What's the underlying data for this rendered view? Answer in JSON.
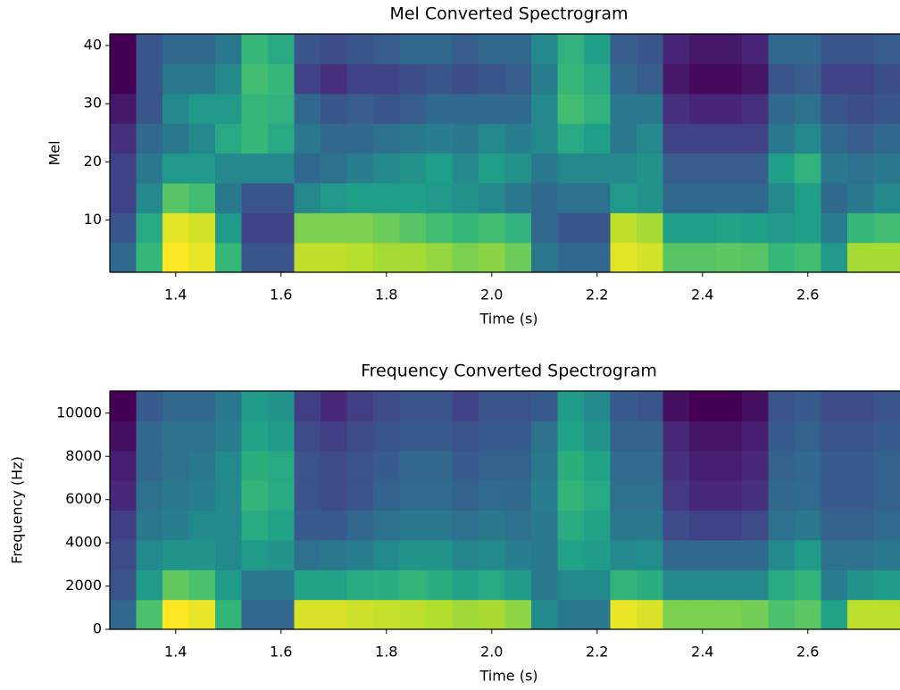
{
  "chart_data": [
    {
      "type": "heatmap",
      "title": "Mel Converted Spectrogram",
      "xlabel": "Time (s)",
      "ylabel": "Mel",
      "colormap": "viridis",
      "x": [
        1.3,
        1.35,
        1.4,
        1.45,
        1.5,
        1.55,
        1.6,
        1.65,
        1.7,
        1.75,
        1.8,
        1.85,
        1.9,
        1.95,
        2.0,
        2.05,
        2.1,
        2.15,
        2.2,
        2.25,
        2.3,
        2.35,
        2.4,
        2.45,
        2.5,
        2.55,
        2.6,
        2.65,
        2.7,
        2.75
      ],
      "values": [
        [
          45,
          70,
          95,
          93,
          70,
          40,
          40,
          88,
          88,
          87,
          85,
          85,
          83,
          80,
          82,
          78,
          50,
          45,
          45,
          92,
          90,
          75,
          75,
          76,
          75,
          70,
          72,
          60,
          85,
          85
        ],
        [
          40,
          65,
          92,
          90,
          60,
          35,
          35,
          80,
          80,
          80,
          78,
          75,
          72,
          70,
          72,
          68,
          45,
          40,
          40,
          88,
          85,
          62,
          62,
          63,
          62,
          60,
          62,
          52,
          70,
          72
        ],
        [
          35,
          55,
          75,
          72,
          50,
          40,
          40,
          55,
          60,
          62,
          62,
          62,
          60,
          58,
          55,
          50,
          45,
          48,
          48,
          60,
          58,
          45,
          45,
          45,
          45,
          55,
          62,
          45,
          50,
          55
        ],
        [
          35,
          50,
          60,
          60,
          55,
          55,
          55,
          45,
          48,
          52,
          55,
          58,
          62,
          55,
          62,
          58,
          50,
          55,
          55,
          55,
          58,
          42,
          42,
          42,
          42,
          62,
          68,
          50,
          48,
          50
        ],
        [
          30,
          45,
          50,
          55,
          65,
          70,
          65,
          50,
          45,
          45,
          48,
          50,
          52,
          50,
          55,
          52,
          55,
          65,
          62,
          50,
          55,
          35,
          35,
          35,
          35,
          50,
          55,
          45,
          42,
          45
        ],
        [
          25,
          40,
          55,
          60,
          60,
          70,
          68,
          45,
          40,
          42,
          40,
          42,
          45,
          45,
          45,
          45,
          55,
          72,
          68,
          50,
          50,
          30,
          28,
          28,
          30,
          45,
          48,
          40,
          38,
          40
        ],
        [
          20,
          40,
          50,
          50,
          55,
          72,
          70,
          35,
          30,
          35,
          35,
          38,
          40,
          38,
          40,
          42,
          52,
          70,
          65,
          45,
          42,
          25,
          22,
          22,
          24,
          40,
          42,
          35,
          35,
          38
        ],
        [
          20,
          40,
          45,
          45,
          50,
          70,
          65,
          40,
          38,
          40,
          42,
          45,
          45,
          42,
          45,
          45,
          55,
          68,
          62,
          42,
          40,
          28,
          25,
          25,
          28,
          45,
          45,
          40,
          40,
          42
        ]
      ],
      "xlim": [
        1.275,
        2.775
      ],
      "ylim": [
        1,
        42
      ],
      "xticks": [
        1.4,
        1.6,
        1.8,
        {
          "value": 2,
          "label": "2.0"
        },
        2.2,
        2.4,
        2.6
      ],
      "yticks": [
        10,
        20,
        30,
        40
      ]
    },
    {
      "type": "heatmap",
      "title": "Frequency Converted Spectrogram",
      "xlabel": "Time (s)",
      "ylabel": "Frequency (Hz)",
      "colormap": "viridis",
      "x": [
        1.3,
        1.35,
        1.4,
        1.45,
        1.5,
        1.55,
        1.6,
        1.65,
        1.7,
        1.75,
        1.8,
        1.85,
        1.9,
        1.95,
        2.0,
        2.05,
        2.1,
        2.15,
        2.2,
        2.25,
        2.3,
        2.35,
        2.4,
        2.45,
        2.5,
        2.55,
        2.6,
        2.65,
        2.7,
        2.75
      ],
      "values": [
        [
          45,
          72,
          92,
          90,
          68,
          45,
          45,
          88,
          88,
          87,
          86,
          85,
          84,
          82,
          83,
          80,
          55,
          50,
          50,
          90,
          88,
          78,
          78,
          78,
          77,
          72,
          74,
          62,
          85,
          85
        ],
        [
          40,
          60,
          75,
          72,
          60,
          50,
          50,
          62,
          62,
          65,
          66,
          68,
          66,
          62,
          64,
          60,
          50,
          55,
          55,
          68,
          66,
          55,
          55,
          55,
          55,
          65,
          68,
          52,
          58,
          60
        ],
        [
          38,
          55,
          58,
          58,
          55,
          60,
          58,
          48,
          50,
          52,
          55,
          58,
          58,
          54,
          55,
          52,
          50,
          62,
          60,
          55,
          56,
          45,
          45,
          45,
          45,
          55,
          60,
          48,
          48,
          50
        ],
        [
          35,
          50,
          52,
          55,
          55,
          65,
          62,
          42,
          42,
          45,
          48,
          50,
          50,
          48,
          50,
          48,
          50,
          65,
          62,
          50,
          50,
          38,
          36,
          36,
          38,
          48,
          50,
          44,
          44,
          46
        ],
        [
          30,
          48,
          50,
          52,
          55,
          68,
          65,
          40,
          38,
          40,
          44,
          46,
          46,
          44,
          46,
          45,
          52,
          68,
          64,
          48,
          48,
          34,
          30,
          30,
          32,
          45,
          46,
          42,
          42,
          44
        ],
        [
          28,
          45,
          48,
          50,
          55,
          66,
          64,
          40,
          38,
          40,
          42,
          45,
          45,
          42,
          44,
          44,
          50,
          66,
          62,
          46,
          46,
          32,
          28,
          28,
          30,
          44,
          45,
          42,
          42,
          44
        ],
        [
          25,
          45,
          48,
          48,
          52,
          62,
          60,
          38,
          35,
          38,
          40,
          42,
          42,
          40,
          42,
          42,
          48,
          62,
          58,
          44,
          44,
          30,
          26,
          26,
          28,
          42,
          44,
          40,
          40,
          42
        ],
        [
          22,
          42,
          45,
          45,
          50,
          60,
          58,
          35,
          30,
          35,
          38,
          40,
          40,
          36,
          40,
          40,
          42,
          60,
          55,
          42,
          40,
          25,
          22,
          22,
          25,
          40,
          42,
          38,
          38,
          40
        ]
      ],
      "xlim": [
        1.275,
        2.775
      ],
      "ylim": [
        0,
        11025
      ],
      "xticks": [
        1.4,
        1.6,
        1.8,
        {
          "value": 2,
          "label": "2.0"
        },
        2.2,
        2.4,
        2.6
      ],
      "yticks": [
        0,
        2000,
        4000,
        6000,
        8000,
        10000
      ]
    }
  ]
}
